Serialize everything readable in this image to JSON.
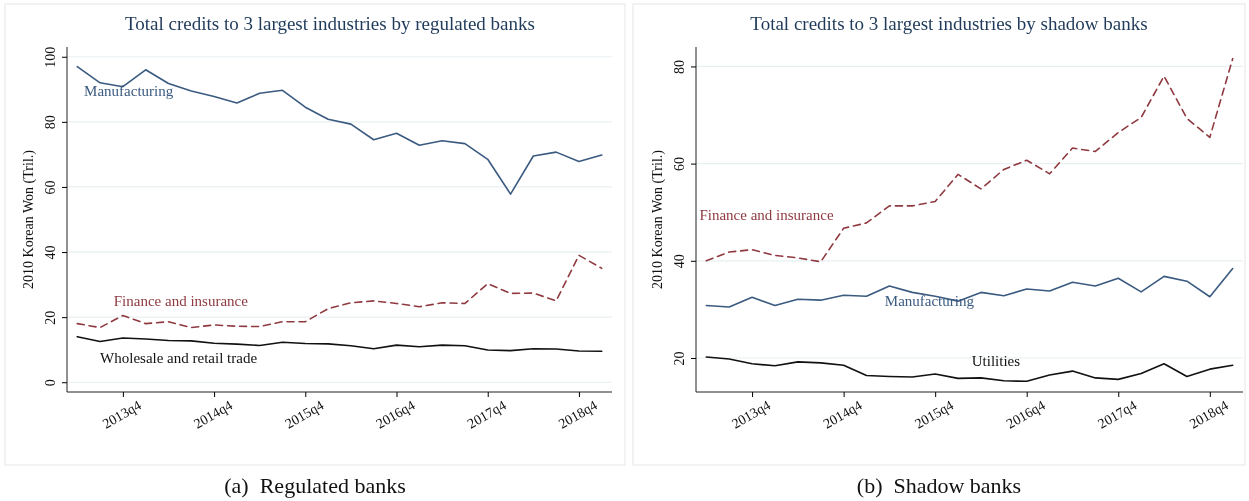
{
  "chart_data": [
    {
      "type": "line",
      "title": "Total credits to 3 largest industries by regulated banks",
      "ylabel": "2010 Korean Won (Tril.)",
      "categories": [
        null,
        null,
        "2013q4",
        null,
        null,
        null,
        "2014q4",
        null,
        null,
        null,
        "2015q4",
        null,
        null,
        null,
        "2016q4",
        null,
        null,
        null,
        "2017q4",
        null,
        null,
        null,
        "2018q4",
        null
      ],
      "ylim": [
        -3,
        103
      ],
      "yticks": [
        0,
        20,
        40,
        60,
        80,
        100
      ],
      "grid": "y",
      "marker": "none",
      "annotations": [
        "(a)  Regulated banks"
      ],
      "series": [
        {
          "name": "Manufacturing",
          "color": "#3a5a80",
          "line_style": "solid",
          "values": [
            97,
            92,
            90.8,
            96,
            91.8,
            89.5,
            87.8,
            85.8,
            88.8,
            89.7,
            84.5,
            80.8,
            79.3,
            74.5,
            76.5,
            72.8,
            74.2,
            73.3,
            68.5,
            57.8,
            69.5,
            70.7,
            67.8,
            69.8
          ]
        },
        {
          "name": "Finance and insurance",
          "color": "#8f3a40",
          "line_style": "dashed",
          "values": [
            18,
            16.8,
            20.5,
            18,
            18.6,
            16.8,
            17.6,
            17.2,
            17.1,
            18.6,
            18.6,
            22.6,
            24.4,
            25,
            24.2,
            23.2,
            24.4,
            24.2,
            30.3,
            27.3,
            27.4,
            25,
            39,
            35
          ]
        },
        {
          "name": "Wholesale and retail trade",
          "color": "#111111",
          "line_style": "solid",
          "values": [
            14,
            12.5,
            13.6,
            13.3,
            12.8,
            12.7,
            12,
            11.7,
            11.3,
            12.3,
            11.9,
            11.8,
            11.2,
            10.3,
            11.4,
            10.9,
            11.4,
            11.2,
            9.9,
            9.7,
            10.3,
            10.2,
            9.6,
            9.5
          ]
        }
      ]
    },
    {
      "type": "line",
      "title": "Total credits to 3 largest industries by shadow banks",
      "ylabel": "2010 Korean Won (Tril.)",
      "categories": [
        null,
        null,
        "2013q4",
        null,
        null,
        null,
        "2014q4",
        null,
        null,
        null,
        "2015q4",
        null,
        null,
        null,
        "2016q4",
        null,
        null,
        null,
        "2017q4",
        null,
        null,
        null,
        "2018q4",
        null
      ],
      "ylim": [
        13,
        84
      ],
      "yticks": [
        20,
        40,
        60,
        80
      ],
      "grid": "y",
      "marker": "none",
      "annotations": [
        "(b)  Shadow banks"
      ],
      "series": [
        {
          "name": "Finance and insurance",
          "color": "#8f3a40",
          "line_style": "dashed",
          "values": [
            40,
            41.8,
            42.3,
            41.1,
            40.6,
            39.8,
            46.7,
            47.8,
            51.3,
            51.3,
            52.2,
            57.8,
            54.8,
            58.8,
            60.7,
            57.9,
            63.2,
            62.5,
            66.4,
            69.5,
            78,
            69.3,
            65.4,
            81.6
          ]
        },
        {
          "name": "Manufacturing",
          "color": "#3a5a80",
          "line_style": "solid",
          "values": [
            30.8,
            30.5,
            32.5,
            30.8,
            32.1,
            31.9,
            32.9,
            32.7,
            34.8,
            33.5,
            32.7,
            31.7,
            33.5,
            32.8,
            34.2,
            33.8,
            35.6,
            34.8,
            36.4,
            33.6,
            36.8,
            35.8,
            32.6,
            38.4
          ]
        },
        {
          "name": "Utilities",
          "color": "#111111",
          "line_style": "solid",
          "values": [
            20.2,
            19.8,
            18.8,
            18.4,
            19.2,
            19,
            18.5,
            16.4,
            16.2,
            16.1,
            16.7,
            15.8,
            15.9,
            15.3,
            15.2,
            16.5,
            17.3,
            15.9,
            15.6,
            16.8,
            18.8,
            16.2,
            17.7,
            18.5
          ]
        }
      ]
    }
  ]
}
